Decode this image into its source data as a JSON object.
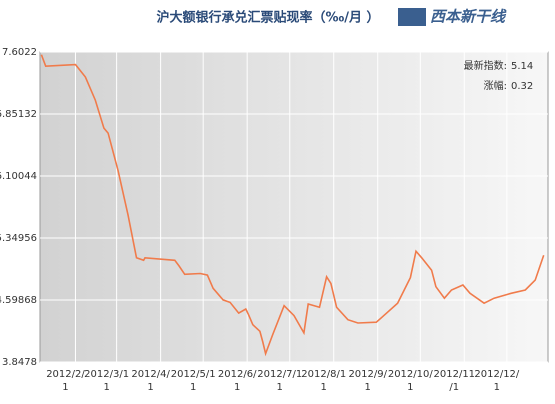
{
  "chart_data": {
    "type": "line",
    "title": "沪大额银行承兑汇票贴现率（‰/月 ）",
    "x": [
      "2012/1/8",
      "2012/1/11",
      "2012/2/1",
      "2012/2/8",
      "2012/2/15",
      "2012/2/21",
      "2012/2/24",
      "2012/3/2",
      "2012/3/9",
      "2012/3/15",
      "2012/3/20",
      "2012/3/21",
      "2012/4/11",
      "2012/4/14",
      "2012/4/18",
      "2012/4/29",
      "2012/5/4",
      "2012/5/8",
      "2012/5/15",
      "2012/5/20",
      "2012/5/26",
      "2012/5/31",
      "2012/6/2",
      "2012/6/5",
      "2012/6/10",
      "2012/6/12",
      "2012/6/14",
      "2012/6/19",
      "2012/6/27",
      "2012/7/4",
      "2012/7/11",
      "2012/7/14",
      "2012/7/22",
      "2012/7/27",
      "2012/7/30",
      "2012/8/3",
      "2012/8/11",
      "2012/8/18",
      "2012/8/31",
      "2012/9/4",
      "2012/9/15",
      "2012/9/24",
      "2012/9/28",
      "2012/10/2",
      "2012/10/9",
      "2012/10/12",
      "2012/10/18",
      "2012/10/23",
      "2012/10/31",
      "2012/11/5",
      "2012/11/15",
      "2012/11/22",
      "2012/12/4",
      "2012/12/14",
      "2012/12/21",
      "2012/12/27"
    ],
    "values": [
      7.57,
      7.43,
      7.45,
      7.3,
      7.02,
      6.68,
      6.62,
      6.17,
      5.63,
      5.11,
      5.08,
      5.11,
      5.08,
      5.01,
      4.91,
      4.92,
      4.9,
      4.74,
      4.6,
      4.57,
      4.44,
      4.49,
      4.42,
      4.3,
      4.22,
      4.09,
      3.95,
      4.18,
      4.53,
      4.41,
      4.2,
      4.55,
      4.51,
      4.88,
      4.8,
      4.51,
      4.36,
      4.32,
      4.33,
      4.39,
      4.56,
      4.87,
      5.19,
      5.11,
      4.96,
      4.76,
      4.62,
      4.72,
      4.78,
      4.68,
      4.56,
      4.62,
      4.68,
      4.72,
      4.84,
      5.14
    ],
    "color": "#f07b4b",
    "xlim": [
      "2012/1/7",
      "2012/12/30"
    ],
    "xticks": [
      {
        "value": "2012/2/1",
        "label": [
          "2012/2/",
          "1"
        ]
      },
      {
        "value": "2012/3/1",
        "label": [
          "2012/3/1",
          "1"
        ]
      },
      {
        "value": "2012/4/1",
        "label": [
          "2012/4/",
          "1"
        ]
      },
      {
        "value": "2012/5/1",
        "label": [
          "2012/5/1",
          "1"
        ]
      },
      {
        "value": "2012/6/1",
        "label": [
          "2012/6/",
          "1"
        ]
      },
      {
        "value": "2012/7/1",
        "label": [
          "2012/7/1",
          "1"
        ]
      },
      {
        "value": "2012/8/1",
        "label": [
          "2012/8/1",
          "1"
        ]
      },
      {
        "value": "2012/9/1",
        "label": [
          "2012/9/",
          "1"
        ]
      },
      {
        "value": "2012/10/1",
        "label": [
          "2012/10/",
          "1"
        ]
      },
      {
        "value": "2012/11/1",
        "label": [
          "2012/11",
          "/1"
        ]
      },
      {
        "value": "2012/12/1",
        "label": [
          "2012/12/",
          "1"
        ]
      }
    ],
    "ylim": [
      3.8478,
      7.6022
    ],
    "yticks": [
      3.8478,
      4.59868,
      5.34956,
      6.10044,
      6.85132,
      7.6022
    ],
    "grid": true,
    "info": [
      {
        "label": "最新指数:",
        "value": "5.14"
      },
      {
        "label": "涨幅:",
        "value": "0.32"
      }
    ]
  },
  "logo": "西本新干线"
}
